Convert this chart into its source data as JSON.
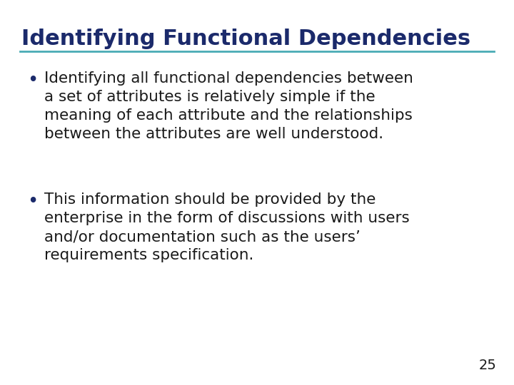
{
  "title": "Identifying Functional Dependencies",
  "title_color": "#1B2A6B",
  "title_fontsize": 22,
  "line_color": "#4AABB5",
  "background_color": "#FFFFFF",
  "bullet_color": "#1B2A6B",
  "text_color": "#1a1a1a",
  "bullet_fontsize": 15.5,
  "page_number": "25",
  "page_number_fontsize": 14,
  "bullet1_lines": [
    "Identifying all functional dependencies between",
    "a set of attributes is relatively simple if the",
    "meaning of each attribute and the relationships",
    "between the attributes are well understood."
  ],
  "bullet2_lines": [
    "This information should be provided by the",
    "enterprise in the form of discussions with users",
    "and/or documentation such as the users’",
    "requirements specification."
  ]
}
